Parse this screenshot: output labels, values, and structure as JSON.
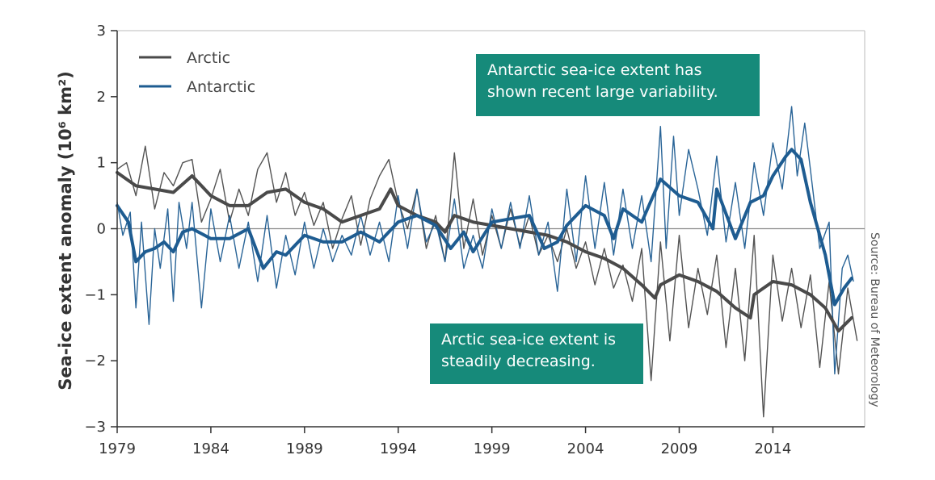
{
  "chart_data": {
    "type": "line",
    "title": "",
    "ylabel": "Sea-ice extent anomaly (10⁶ km²)",
    "xlabel": "",
    "xlim": [
      1979,
      2018.9
    ],
    "ylim": [
      -3,
      3
    ],
    "x_ticks": [
      1979,
      1984,
      1989,
      1994,
      1999,
      2004,
      2009,
      2014
    ],
    "x_tick_labels": [
      "1979",
      "1984",
      "1989",
      "1994",
      "1999",
      "2004",
      "2009",
      "2014"
    ],
    "y_ticks": [
      3,
      2,
      1,
      0,
      -1,
      -2,
      -3
    ],
    "y_tick_labels": [
      "3",
      "2",
      "1",
      "0",
      "−1",
      "−2",
      "−3"
    ],
    "grid": false,
    "zero_line": true,
    "legend_position": "top-left",
    "series": [
      {
        "name": "Arctic",
        "color": "#4a4a4a",
        "smoothed": {
          "x": [
            1979,
            1979.5,
            1980,
            1981,
            1982,
            1983,
            1984,
            1985,
            1986,
            1987,
            1988,
            1989,
            1990,
            1991,
            1992,
            1993,
            1993.6,
            1994,
            1995,
            1996,
            1996.5,
            1997,
            1998,
            1999,
            2000,
            2001,
            2002,
            2003,
            2004,
            2005,
            2006,
            2007,
            2007.7,
            2008,
            2009,
            2010,
            2011,
            2012,
            2012.8,
            2013,
            2014,
            2015,
            2016,
            2016.8,
            2017.5,
            2018.2
          ],
          "y": [
            0.85,
            0.75,
            0.65,
            0.6,
            0.55,
            0.8,
            0.5,
            0.35,
            0.35,
            0.55,
            0.6,
            0.4,
            0.3,
            0.1,
            0.2,
            0.3,
            0.6,
            0.35,
            0.2,
            0.1,
            -0.05,
            0.2,
            0.1,
            0.05,
            0.0,
            -0.05,
            -0.1,
            -0.2,
            -0.35,
            -0.45,
            -0.6,
            -0.85,
            -1.05,
            -0.85,
            -0.7,
            -0.8,
            -0.95,
            -1.2,
            -1.35,
            -1.0,
            -0.8,
            -0.85,
            -1.0,
            -1.2,
            -1.55,
            -1.35
          ]
        },
        "monthly": {
          "x": [
            1979,
            1979.5,
            1980,
            1980.5,
            1981,
            1981.5,
            1982,
            1982.5,
            1983,
            1983.5,
            1984,
            1984.5,
            1985,
            1985.5,
            1986,
            1986.5,
            1987,
            1987.5,
            1988,
            1988.5,
            1989,
            1989.5,
            1990,
            1990.5,
            1991,
            1991.5,
            1992,
            1992.5,
            1993,
            1993.5,
            1994,
            1994.5,
            1995,
            1995.5,
            1996,
            1996.5,
            1997,
            1997.5,
            1998,
            1998.5,
            1999,
            1999.5,
            2000,
            2000.5,
            2001,
            2001.5,
            2002,
            2002.5,
            2003,
            2003.5,
            2004,
            2004.5,
            2005,
            2005.5,
            2006,
            2006.5,
            2007,
            2007.5,
            2008,
            2008.5,
            2009,
            2009.5,
            2010,
            2010.5,
            2011,
            2011.5,
            2012,
            2012.5,
            2013,
            2013.5,
            2014,
            2014.5,
            2015,
            2015.5,
            2016,
            2016.5,
            2017,
            2017.5,
            2018,
            2018.5
          ],
          "y": [
            0.9,
            1.0,
            0.5,
            1.25,
            0.3,
            0.85,
            0.65,
            1.0,
            1.05,
            0.1,
            0.45,
            0.9,
            0.1,
            0.6,
            0.2,
            0.9,
            1.15,
            0.4,
            0.85,
            0.2,
            0.55,
            0.05,
            0.4,
            -0.3,
            0.15,
            0.5,
            -0.25,
            0.45,
            0.8,
            1.05,
            0.4,
            0.0,
            0.6,
            -0.3,
            0.2,
            -0.5,
            1.15,
            -0.3,
            0.45,
            -0.4,
            0.2,
            -0.3,
            0.3,
            -0.25,
            0.2,
            -0.4,
            -0.1,
            -0.5,
            0.0,
            -0.6,
            -0.2,
            -0.85,
            -0.3,
            -0.9,
            -0.55,
            -1.1,
            -0.3,
            -2.3,
            -0.2,
            -1.7,
            -0.1,
            -1.5,
            -0.6,
            -1.3,
            -0.4,
            -1.8,
            -0.6,
            -2.0,
            -0.1,
            -2.85,
            -0.4,
            -1.4,
            -0.6,
            -1.5,
            -0.7,
            -2.1,
            -0.8,
            -2.2,
            -0.9,
            -1.7
          ]
        }
      },
      {
        "name": "Antarctic",
        "color": "#1e5c91",
        "smoothed": {
          "x": [
            1979,
            1979.6,
            1980,
            1980.5,
            1981,
            1981.5,
            1982,
            1982.5,
            1983,
            1984,
            1985,
            1986,
            1986.8,
            1987.5,
            1988,
            1989,
            1990,
            1991,
            1992,
            1993,
            1994,
            1995,
            1996,
            1996.8,
            1997.5,
            1998,
            1999,
            2000,
            2001,
            2001.8,
            2002.5,
            2003,
            2004,
            2005,
            2005.5,
            2006,
            2007,
            2008,
            2009,
            2010,
            2010.8,
            2011,
            2012,
            2012.8,
            2013.5,
            2014,
            2014.7,
            2015,
            2015.5,
            2016,
            2016.8,
            2017.3,
            2017.8,
            2018.2
          ],
          "y": [
            0.35,
            0.1,
            -0.5,
            -0.35,
            -0.3,
            -0.2,
            -0.35,
            -0.05,
            0.0,
            -0.15,
            -0.15,
            0.0,
            -0.6,
            -0.35,
            -0.4,
            -0.1,
            -0.2,
            -0.2,
            -0.05,
            -0.2,
            0.1,
            0.2,
            0.05,
            -0.3,
            -0.05,
            -0.35,
            0.1,
            0.15,
            0.2,
            -0.3,
            -0.2,
            0.05,
            0.35,
            0.2,
            -0.15,
            0.3,
            0.1,
            0.75,
            0.5,
            0.4,
            0.0,
            0.6,
            -0.15,
            0.4,
            0.5,
            0.8,
            1.1,
            1.2,
            1.05,
            0.4,
            -0.4,
            -1.15,
            -0.9,
            -0.75
          ]
        },
        "monthly": {
          "x": [
            1979,
            1979.3,
            1979.7,
            1980,
            1980.3,
            1980.7,
            1981,
            1981.3,
            1981.7,
            1982,
            1982.3,
            1982.7,
            1983,
            1983.5,
            1984,
            1984.5,
            1985,
            1985.5,
            1986,
            1986.5,
            1987,
            1987.5,
            1988,
            1988.5,
            1989,
            1989.5,
            1990,
            1990.5,
            1991,
            1991.5,
            1992,
            1992.5,
            1993,
            1993.5,
            1994,
            1994.5,
            1995,
            1995.5,
            1996,
            1996.5,
            1997,
            1997.5,
            1998,
            1998.5,
            1999,
            1999.5,
            2000,
            2000.5,
            2001,
            2001.5,
            2002,
            2002.5,
            2003,
            2003.5,
            2004,
            2004.5,
            2005,
            2005.5,
            2006,
            2006.5,
            2007,
            2007.5,
            2008,
            2008.3,
            2008.7,
            2009,
            2009.5,
            2010,
            2010.5,
            2011,
            2011.5,
            2012,
            2012.5,
            2013,
            2013.5,
            2014,
            2014.5,
            2015,
            2015.3,
            2015.7,
            2016,
            2016.5,
            2017,
            2017.3,
            2017.7,
            2018,
            2018.3
          ],
          "y": [
            0.4,
            -0.1,
            0.25,
            -1.2,
            0.1,
            -1.45,
            0.0,
            -0.6,
            0.3,
            -1.1,
            0.4,
            -0.3,
            0.4,
            -1.2,
            0.3,
            -0.5,
            0.2,
            -0.6,
            0.1,
            -0.8,
            0.2,
            -0.9,
            -0.1,
            -0.7,
            0.1,
            -0.6,
            0.0,
            -0.5,
            -0.1,
            -0.4,
            0.2,
            -0.4,
            0.1,
            -0.5,
            0.5,
            -0.3,
            0.6,
            -0.2,
            0.1,
            -0.5,
            0.45,
            -0.6,
            -0.1,
            -0.6,
            0.3,
            -0.3,
            0.4,
            -0.3,
            0.5,
            -0.4,
            0.1,
            -0.95,
            0.6,
            -0.5,
            0.8,
            -0.3,
            0.7,
            -0.4,
            0.6,
            -0.3,
            0.5,
            -0.5,
            1.55,
            -0.3,
            1.4,
            0.2,
            1.2,
            0.6,
            -0.1,
            1.1,
            -0.2,
            0.7,
            -0.3,
            1.0,
            0.2,
            1.3,
            0.6,
            1.85,
            0.8,
            1.6,
            0.9,
            -0.3,
            0.1,
            -2.2,
            -0.6,
            -0.4,
            -0.8
          ]
        }
      }
    ],
    "annotations": [
      "Antarctic sea-ice extent has shown recent large variability.",
      "Arctic sea-ice extent is steadily decreasing."
    ]
  },
  "legend": [
    {
      "label": "Arctic",
      "color": "#4a4a4a"
    },
    {
      "label": "Antarctic",
      "color": "#1e5c91"
    }
  ],
  "callouts": {
    "antarctic": {
      "line1": "Antarctic sea-ice extent has",
      "line2": "shown recent large variability."
    },
    "arctic": {
      "line1": "Arctic sea-ice extent is",
      "line2": "steadily decreasing."
    },
    "bg_color": "#168a7a"
  },
  "source": "Source: Bureau of Meteorology"
}
